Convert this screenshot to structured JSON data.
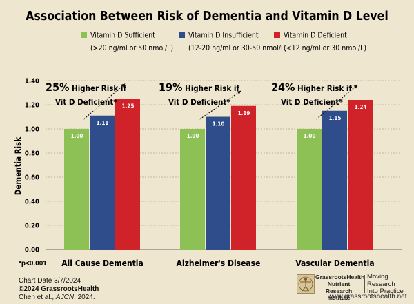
{
  "chart_data": {
    "type": "bar",
    "title": "Association Between Risk of Dementia and Vitamin D Level",
    "ylabel": "Dementia Risk",
    "xlabel": "",
    "ylim": [
      0,
      1.4
    ],
    "yticks": [
      "0.00",
      "0.20",
      "0.40",
      "0.60",
      "0.80",
      "1.00",
      "1.20",
      "1.40"
    ],
    "grid": true,
    "legend_position": "top",
    "categories": [
      "All Cause Dementia",
      "Alzheimer's Disease",
      "Vascular Dementia"
    ],
    "series": [
      {
        "name": "Vitamin D Sufficient",
        "detail": "(>20 ng/ml or 50 nmol/L)",
        "color": "#8dc156",
        "values": [
          1.0,
          1.0,
          1.0
        ],
        "labels": [
          "1.00",
          "1.00",
          "1.00"
        ]
      },
      {
        "name": "Vitamin D Insufficient",
        "detail": "(12-20 ng/ml or 30-50 nmol/L)",
        "color": "#2e4d8a",
        "values": [
          1.11,
          1.1,
          1.15
        ],
        "labels": [
          "1.11",
          "1.10",
          "1.15"
        ]
      },
      {
        "name": "Vitamin D Deficient",
        "detail": "(<12 ng/ml or 30 nmol/L)",
        "color": "#cf2229",
        "values": [
          1.25,
          1.19,
          1.24
        ],
        "labels": [
          "1.25",
          "1.19",
          "1.24"
        ]
      }
    ],
    "annotations": [
      {
        "pct": "25%",
        "line1": "Higher Risk if",
        "line2": "Vit D Deficient*"
      },
      {
        "pct": "19%",
        "line1": "Higher Risk if",
        "line2": "Vit D Deficient*"
      },
      {
        "pct": "24%",
        "line1": "Higher Risk if",
        "line2": "Vit D Deficient*"
      }
    ],
    "footnote": "*p<0.001"
  },
  "footer": {
    "chart_date": "Chart Date 3/7/2024",
    "copyright": "©2024 GrassrootsHealth",
    "citation_prefix": "Chen et al., ",
    "citation_journal": "AJCN",
    "citation_suffix": ", 2024."
  },
  "logo": {
    "org_line1": "GrassrootsHealth",
    "org_line2": "Nutrient",
    "org_line3": "Research Institute",
    "tag_line1": "Moving",
    "tag_line2": "Research",
    "tag_line3": "Into Practice",
    "url": "www.grassrootshealth.net",
    "icon": "vitruvian-man-icon"
  }
}
